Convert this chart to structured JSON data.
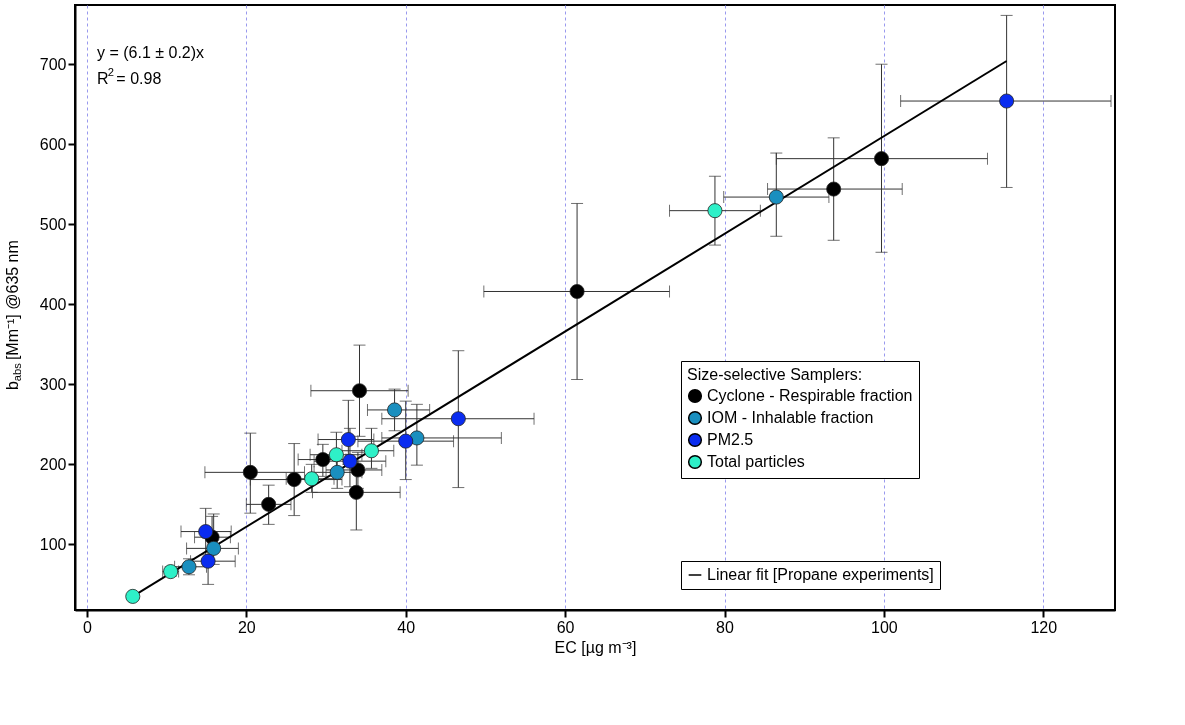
{
  "chart_data": {
    "type": "scatter",
    "xlabel": "EC [µg m⁻³]",
    "ylabel": "b$_{abs}$ [Mm⁻¹] @635 nm",
    "legend_title": "Size-selective Samplers:",
    "annotations": [
      "y = (6.1 ± 0.2)x",
      "R$^{2}$= 0.98"
    ],
    "xlim": [
      -1.5,
      129
    ],
    "ylim": [
      18,
      774
    ],
    "xticks": [
      0,
      20,
      40,
      60,
      80,
      100,
      120
    ],
    "yticks": [
      100,
      200,
      300,
      400,
      500,
      600,
      700
    ],
    "grid": "x",
    "legend": "bottom right",
    "marker": "circle",
    "series": [
      {
        "name": "Cyclone - Respirable fraction",
        "color": "#000000",
        "x": [
          15.7,
          20.5,
          22.8,
          26.0,
          29.6,
          34.0,
          33.8,
          34.2,
          61.5,
          93.7,
          99.7
        ],
        "values": [
          109,
          190,
          150,
          181,
          206,
          193,
          165,
          292,
          416,
          544,
          582
        ],
        "xerrors": [
          [
            13.5,
            18
          ],
          [
            14.8,
            27.3
          ],
          [
            20,
            25.6
          ],
          [
            20.5,
            32
          ],
          [
            26.5,
            32.5
          ],
          [
            30,
            37
          ],
          [
            28.3,
            39.3
          ],
          [
            28.1,
            40.3
          ],
          [
            49.8,
            73.1
          ],
          [
            85.4,
            102.3
          ],
          [
            86.5,
            113
          ]
        ],
        "errors": [
          [
            90,
            135
          ],
          [
            139,
            239
          ],
          [
            125,
            174
          ],
          [
            136,
            226
          ],
          [
            185,
            225
          ],
          [
            170,
            215
          ],
          [
            118,
            190
          ],
          [
            235,
            349
          ],
          [
            306,
            526
          ],
          [
            480,
            608
          ],
          [
            465,
            700
          ]
        ]
      },
      {
        "name": "IOM - Inhalable fraction",
        "color": "#1a8fbf",
        "x": [
          12.8,
          15.9,
          31.4,
          38.6,
          41.4,
          86.5
        ],
        "values": [
          72,
          95,
          190,
          268,
          233,
          534
        ],
        "xerrors": [
          [
            11,
            15
          ],
          [
            12.5,
            19
          ],
          [
            28.5,
            34.5
          ],
          [
            35.2,
            43
          ],
          [
            37,
            52
          ],
          [
            79.9,
            93.1
          ]
        ],
        "errors": [
          [
            62,
            82
          ],
          [
            75,
            138
          ],
          [
            170,
            210
          ],
          [
            242,
            294
          ],
          [
            199,
            275
          ],
          [
            485,
            589
          ]
        ]
      },
      {
        "name": "PM2.5",
        "color": "#0a2cf0",
        "x": [
          14.9,
          15.2,
          32.8,
          33.0,
          40.0,
          46.6,
          115.4
        ],
        "values": [
          116,
          79,
          231,
          204,
          229,
          257,
          654
        ],
        "xerrors": [
          [
            11.8,
            18.1
          ],
          [
            13,
            18.6
          ],
          [
            29,
            36
          ],
          [
            28.5,
            37.5
          ],
          [
            34,
            46
          ],
          [
            37,
            56.1
          ],
          [
            102.1,
            128.5
          ]
        ],
        "errors": [
          [
            87,
            145
          ],
          [
            50,
            108
          ],
          [
            200,
            280
          ],
          [
            172,
            245
          ],
          [
            181,
            279
          ],
          [
            171,
            342
          ],
          [
            546,
            761
          ]
        ]
      },
      {
        "name": "Total particles",
        "color": "#2ef0c8",
        "x": [
          5.75,
          10.5,
          28.2,
          31.3,
          35.7,
          78.8
        ],
        "values": [
          35,
          66,
          182,
          212,
          217,
          517
        ],
        "xerrors": [
          null,
          [
            9.5,
            11.5
          ],
          [
            25,
            31
          ],
          [
            28,
            34.5
          ],
          [
            32,
            38.5
          ],
          [
            73.1,
            84.5
          ]
        ],
        "errors": [
          null,
          [
            60,
            72
          ],
          [
            165,
            200
          ],
          [
            185,
            240
          ],
          [
            195,
            245
          ],
          [
            474,
            560
          ]
        ]
      },
      {
        "name": "Linear fit [Propane experiments]",
        "type": "line",
        "color": "#000000",
        "x": [
          5.75,
          115.4
        ],
        "values": [
          35,
          704
        ],
        "line_style": "solid",
        "marker": "none"
      }
    ]
  }
}
